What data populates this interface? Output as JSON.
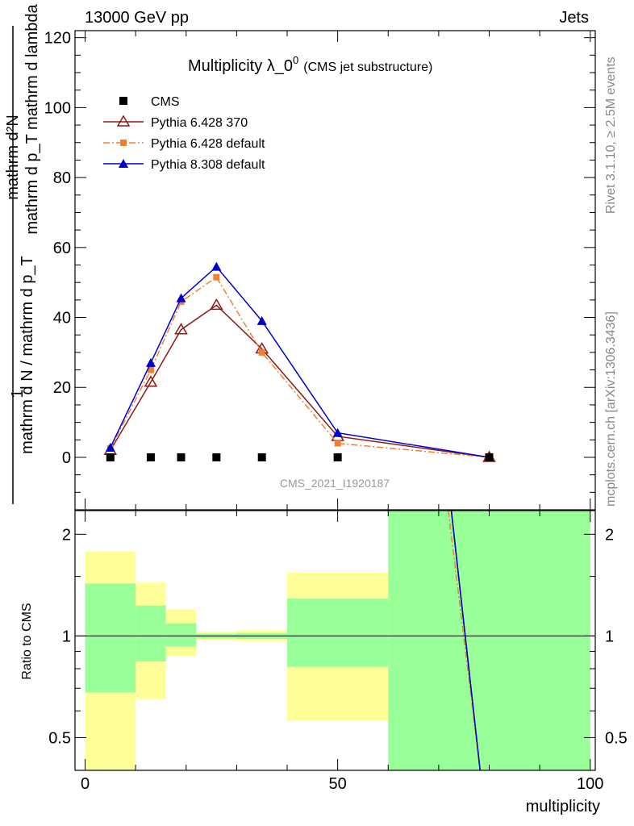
{
  "header": {
    "left": "13000 GeV pp",
    "right": "Jets"
  },
  "side_texts": {
    "rivet": "Rivet 3.1.10, ≥ 2.5M events",
    "mcplots": "mcplots.cern.ch [arXiv:1306.3436]"
  },
  "main_plot": {
    "title": "Multiplicity λ_0",
    "title_sup": "0",
    "title_suffix": "(CMS jet substructure)",
    "watermark": "CMS_2021_I1920187",
    "ylabel_numerator": "mathrm d²N",
    "ylabel_denominator": "mathrm d p_T mathrm d lambda",
    "ylabel_prefix_top": "1",
    "ylabel_prefix_bottom": "mathrm d N / mathrm d p_T",
    "yticks": [
      "0",
      "20",
      "40",
      "60",
      "80",
      "100",
      "120"
    ]
  },
  "ratio_plot": {
    "ylabel": "Ratio to CMS",
    "yticks": [
      "0.5",
      "1",
      "2"
    ]
  },
  "xaxis": {
    "label": "multiplicity",
    "ticks": [
      "0",
      "50",
      "100"
    ]
  },
  "legend": [
    {
      "label": "CMS",
      "color": "#000000",
      "marker": "square",
      "dash": "none"
    },
    {
      "label": "Pythia 6.428 370",
      "color": "#8b1a1a",
      "marker": "triangle-open",
      "dash": "solid"
    },
    {
      "label": "Pythia 6.428 default",
      "color": "#f08030",
      "marker": "square-small",
      "dash": "dashdot"
    },
    {
      "label": "Pythia 8.308 default",
      "color": "#0000cc",
      "marker": "triangle",
      "dash": "solid"
    }
  ],
  "chart_data": {
    "type": "line",
    "xlim": [
      -2,
      101
    ],
    "ylim": [
      -15,
      122
    ],
    "ratio_ylim": [
      0.4,
      2.35
    ],
    "ratio_log": true,
    "series": [
      {
        "name": "CMS",
        "x": [
          5,
          13,
          19,
          26,
          35,
          50,
          80
        ],
        "y": [
          0,
          0,
          0,
          0,
          0,
          0,
          0
        ]
      },
      {
        "name": "Pythia 6.428 370",
        "x": [
          5,
          13,
          19,
          26,
          35,
          50,
          80
        ],
        "y": [
          2,
          21.5,
          36.5,
          43.5,
          31,
          6,
          0
        ]
      },
      {
        "name": "Pythia 6.428 default",
        "x": [
          5,
          13,
          19,
          26,
          35,
          50,
          80
        ],
        "y": [
          2.5,
          25,
          44.5,
          51.5,
          30,
          4,
          0
        ]
      },
      {
        "name": "Pythia 8.308 default",
        "x": [
          5,
          13,
          19,
          26,
          35,
          50,
          80
        ],
        "y": [
          2.8,
          27,
          45.5,
          54.5,
          39,
          7,
          0
        ]
      }
    ],
    "ratio_bands": [
      {
        "x0": 0,
        "x1": 10,
        "yellow": [
          0.4,
          1.78
        ],
        "green": [
          0.68,
          1.43
        ]
      },
      {
        "x0": 10,
        "x1": 16,
        "yellow": [
          0.65,
          1.44
        ],
        "green": [
          0.84,
          1.23
        ]
      },
      {
        "x0": 16,
        "x1": 22,
        "yellow": [
          0.87,
          1.2
        ],
        "green": [
          0.93,
          1.09
        ]
      },
      {
        "x0": 22,
        "x1": 30,
        "yellow": [
          0.97,
          1.03
        ],
        "green": [
          0.985,
          1.015
        ]
      },
      {
        "x0": 30,
        "x1": 40,
        "yellow": [
          0.965,
          1.04
        ],
        "green": [
          0.98,
          1.02
        ]
      },
      {
        "x0": 40,
        "x1": 60,
        "yellow": [
          0.56,
          1.54
        ],
        "green": [
          0.81,
          1.29
        ]
      },
      {
        "x0": 60,
        "x1": 100,
        "yellow": [
          0.4,
          2.35
        ],
        "green": [
          0.4,
          2.35
        ]
      }
    ],
    "ratio_lines": [
      {
        "name": "Pythia 6.428 370",
        "x": [
          72.5,
          78.2
        ],
        "y": [
          2.35,
          0.4
        ]
      },
      {
        "name": "Pythia 6.428 default",
        "x": [
          71.9,
          78.2
        ],
        "y": [
          2.35,
          0.4
        ]
      },
      {
        "name": "Pythia 8.308 default",
        "x": [
          72.5,
          78.2
        ],
        "y": [
          2.35,
          0.4
        ]
      }
    ],
    "grid": false
  }
}
